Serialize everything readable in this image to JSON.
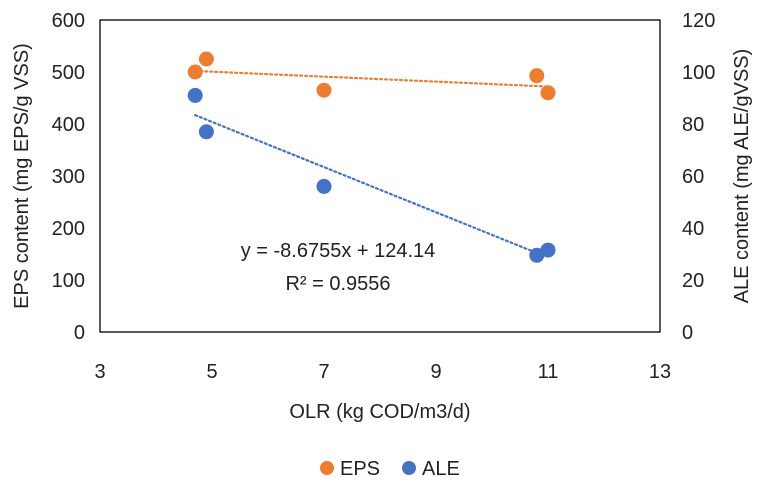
{
  "chart_data": {
    "type": "scatter",
    "xlabel": "OLR (kg COD/m3/d)",
    "ylabel_left": "EPS content (mg EPS/g VSS)",
    "ylabel_right": "ALE content (mg ALE/gVSS)",
    "xlim": [
      3,
      13
    ],
    "ylim_left": [
      0,
      600
    ],
    "ylim_right": [
      0,
      120
    ],
    "x_ticks": [
      "3",
      "5",
      "7",
      "9",
      "11",
      "13"
    ],
    "y_left_ticks": [
      "0",
      "100",
      "200",
      "300",
      "400",
      "500",
      "600"
    ],
    "y_right_ticks": [
      "0",
      "20",
      "40",
      "60",
      "80",
      "100",
      "120"
    ],
    "grid": false,
    "legend_position": "bottom",
    "series": [
      {
        "name": "EPS",
        "axis": "left",
        "color": "#ED7D31",
        "x": [
          4.7,
          4.9,
          7.0,
          10.8,
          11.0
        ],
        "y": [
          500,
          525,
          465,
          493,
          460
        ],
        "trendline": {
          "type": "linear",
          "x": [
            4.7,
            11.0
          ],
          "y": [
            502,
            472
          ]
        }
      },
      {
        "name": "ALE",
        "axis": "right",
        "color": "#4472C4",
        "x": [
          4.7,
          4.9,
          7.0,
          10.8,
          11.0
        ],
        "y": [
          91,
          77,
          56,
          29.5,
          31.5
        ],
        "trendline": {
          "type": "linear",
          "x": [
            4.7,
            10.8
          ],
          "y": [
            83.4,
            30.4
          ]
        }
      }
    ],
    "annotations": [
      "y = -8.6755x + 124.14",
      "R² = 0.9556"
    ]
  }
}
